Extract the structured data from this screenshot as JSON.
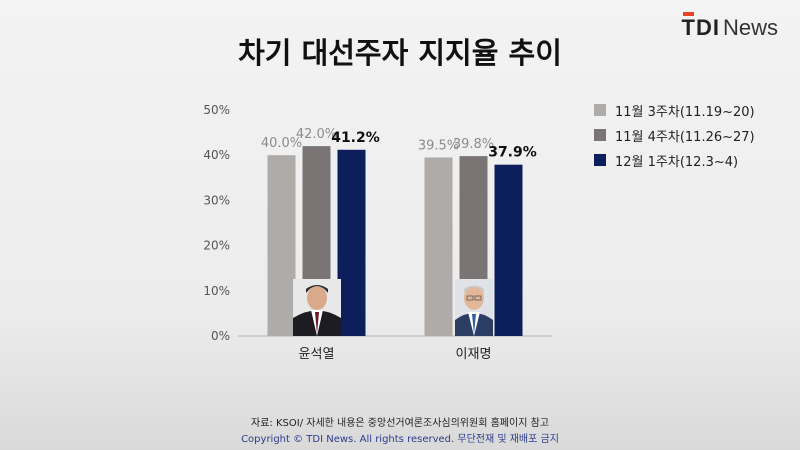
{
  "logo": {
    "tdi": "TDI",
    "news": "News"
  },
  "title": "차기 대선주자 지지율 추이",
  "source": "자료: KSOI/ 자세한 내용은 중앙선거여론조사심의위원회 홈페이지 참고",
  "copyright": "Copyright © TDI News. All rights reserved. 무단전재 및 재배포 금지",
  "chart_data": {
    "type": "bar",
    "title": "차기 대선주자 지지율 추이",
    "categories": [
      "윤석열",
      "이재명"
    ],
    "series": [
      {
        "name": "11월 3주차(11.19~20)",
        "values": [
          40.0,
          39.5
        ],
        "labels": [
          "40.0%",
          "39.5%"
        ],
        "color": "#aeaba8",
        "label_color": "#8c8c8c"
      },
      {
        "name": "11월 4주차(11.26~27)",
        "values": [
          42.0,
          39.8
        ],
        "labels": [
          "42.0%",
          "39.8%"
        ],
        "color": "#7a7574",
        "label_color": "#8c8c8c"
      },
      {
        "name": "12월 1주차(12.3~4)",
        "values": [
          41.2,
          37.9
        ],
        "labels": [
          "41.2%",
          "37.9%"
        ],
        "color": "#0c1f5c",
        "label_color": "#111111"
      }
    ],
    "yticks": [
      "0%",
      "10%",
      "20%",
      "30%",
      "40%",
      "50%"
    ],
    "ylim": [
      0,
      50
    ],
    "grid": false,
    "legend": "right",
    "xlabel": "",
    "ylabel": ""
  }
}
